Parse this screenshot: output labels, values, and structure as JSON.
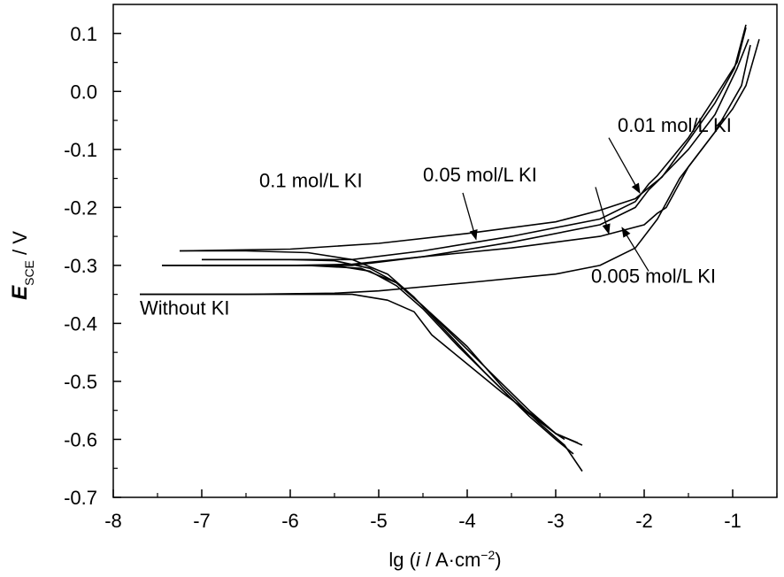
{
  "chart_data": {
    "type": "line",
    "xlabel_prefix": "lg (",
    "xlabel_i": "i",
    "xlabel_mid": " / A·cm",
    "xlabel_sup": "−2",
    "xlabel_suffix": ")",
    "ylabel_main": "E",
    "ylabel_sub": "SCE",
    "ylabel_unit": " / V",
    "xlim": [
      -8,
      -0.5
    ],
    "ylim": [
      -0.7,
      0.15
    ],
    "x_ticks": [
      "-8",
      "-7",
      "-6",
      "-5",
      "-4",
      "-3",
      "-2",
      "-1"
    ],
    "y_ticks": [
      "0.1",
      "0.0",
      "-0.1",
      "-0.2",
      "-0.3",
      "-0.4",
      "-0.5",
      "-0.6",
      "-0.7"
    ],
    "x_tick_values": [
      -8,
      -7,
      -6,
      -5,
      -4,
      -3,
      -2,
      -1
    ],
    "y_tick_values": [
      0.1,
      0.0,
      -0.1,
      -0.2,
      -0.3,
      -0.4,
      -0.5,
      -0.6,
      -0.7
    ],
    "series": [
      {
        "name": "Without KI",
        "cathodic": [
          [
            -7.7,
            -0.35
          ],
          [
            -7.0,
            -0.35
          ],
          [
            -6.0,
            -0.35
          ],
          [
            -5.3,
            -0.35
          ],
          [
            -4.9,
            -0.36
          ],
          [
            -4.6,
            -0.38
          ],
          [
            -4.4,
            -0.42
          ],
          [
            -4.0,
            -0.47
          ],
          [
            -3.6,
            -0.52
          ],
          [
            -3.2,
            -0.565
          ],
          [
            -3.0,
            -0.59
          ],
          [
            -2.75,
            -0.606
          ]
        ],
        "anodic": [
          [
            -7.7,
            -0.35
          ],
          [
            -6.5,
            -0.35
          ],
          [
            -5.5,
            -0.348
          ],
          [
            -5.0,
            -0.344
          ],
          [
            -4.0,
            -0.33
          ],
          [
            -3.0,
            -0.315
          ],
          [
            -2.5,
            -0.3
          ],
          [
            -2.1,
            -0.27
          ],
          [
            -1.85,
            -0.22
          ],
          [
            -1.6,
            -0.15
          ],
          [
            -1.3,
            -0.09
          ],
          [
            -1.0,
            -0.03
          ],
          [
            -0.85,
            0.01
          ],
          [
            -0.7,
            0.09
          ]
        ]
      },
      {
        "name": "0.005 mol/L KI",
        "cathodic": [
          [
            -7.45,
            -0.3
          ],
          [
            -6.5,
            -0.3
          ],
          [
            -5.8,
            -0.3
          ],
          [
            -5.2,
            -0.305
          ],
          [
            -4.8,
            -0.33
          ],
          [
            -4.5,
            -0.37
          ],
          [
            -4.1,
            -0.43
          ],
          [
            -3.7,
            -0.49
          ],
          [
            -3.3,
            -0.55
          ],
          [
            -3.0,
            -0.59
          ],
          [
            -2.7,
            -0.61
          ]
        ],
        "anodic": [
          [
            -7.45,
            -0.3
          ],
          [
            -6.0,
            -0.3
          ],
          [
            -5.3,
            -0.3
          ],
          [
            -4.5,
            -0.285
          ],
          [
            -3.5,
            -0.27
          ],
          [
            -2.5,
            -0.25
          ],
          [
            -2.0,
            -0.23
          ],
          [
            -1.85,
            -0.21
          ],
          [
            -1.75,
            -0.2
          ],
          [
            -1.5,
            -0.13
          ],
          [
            -1.2,
            -0.07
          ],
          [
            -0.9,
            0.01
          ],
          [
            -0.8,
            0.08
          ]
        ]
      },
      {
        "name": "0.01 mol/L KI",
        "cathodic": [
          [
            -7.0,
            -0.3
          ],
          [
            -6.2,
            -0.3
          ],
          [
            -5.5,
            -0.3
          ],
          [
            -5.1,
            -0.31
          ],
          [
            -4.8,
            -0.335
          ],
          [
            -4.5,
            -0.375
          ],
          [
            -4.1,
            -0.44
          ],
          [
            -3.7,
            -0.5
          ],
          [
            -3.3,
            -0.56
          ],
          [
            -3.0,
            -0.6
          ],
          [
            -2.8,
            -0.625
          ]
        ],
        "anodic": [
          [
            -7.0,
            -0.3
          ],
          [
            -6.0,
            -0.3
          ],
          [
            -5.3,
            -0.298
          ],
          [
            -4.5,
            -0.285
          ],
          [
            -3.5,
            -0.26
          ],
          [
            -2.5,
            -0.23
          ],
          [
            -2.1,
            -0.2
          ],
          [
            -1.95,
            -0.17
          ],
          [
            -1.85,
            -0.155
          ],
          [
            -1.5,
            -0.1
          ],
          [
            -1.2,
            -0.04
          ],
          [
            -0.95,
            0.04
          ],
          [
            -0.82,
            0.09
          ]
        ]
      },
      {
        "name": "0.05 mol/L KI",
        "cathodic": [
          [
            -7.0,
            -0.29
          ],
          [
            -6.0,
            -0.29
          ],
          [
            -5.5,
            -0.292
          ],
          [
            -5.1,
            -0.305
          ],
          [
            -4.8,
            -0.33
          ],
          [
            -4.5,
            -0.37
          ],
          [
            -4.0,
            -0.44
          ],
          [
            -3.6,
            -0.51
          ],
          [
            -3.2,
            -0.57
          ],
          [
            -2.9,
            -0.61
          ],
          [
            -2.7,
            -0.655
          ]
        ],
        "anodic": [
          [
            -7.0,
            -0.29
          ],
          [
            -6.0,
            -0.29
          ],
          [
            -5.3,
            -0.29
          ],
          [
            -4.5,
            -0.275
          ],
          [
            -3.5,
            -0.25
          ],
          [
            -2.5,
            -0.22
          ],
          [
            -2.1,
            -0.19
          ],
          [
            -1.95,
            -0.16
          ],
          [
            -1.85,
            -0.145
          ],
          [
            -1.5,
            -0.08
          ],
          [
            -1.2,
            -0.01
          ],
          [
            -0.95,
            0.05
          ],
          [
            -0.85,
            0.11
          ]
        ]
      },
      {
        "name": "0.1 mol/L KI",
        "cathodic": [
          [
            -7.25,
            -0.275
          ],
          [
            -6.5,
            -0.275
          ],
          [
            -5.8,
            -0.278
          ],
          [
            -5.3,
            -0.29
          ],
          [
            -4.9,
            -0.315
          ],
          [
            -4.6,
            -0.355
          ],
          [
            -4.2,
            -0.42
          ],
          [
            -3.8,
            -0.485
          ],
          [
            -3.4,
            -0.545
          ],
          [
            -3.0,
            -0.59
          ],
          [
            -2.9,
            -0.6
          ]
        ],
        "anodic": [
          [
            -7.25,
            -0.275
          ],
          [
            -6.0,
            -0.272
          ],
          [
            -5.0,
            -0.262
          ],
          [
            -4.0,
            -0.245
          ],
          [
            -3.0,
            -0.225
          ],
          [
            -2.5,
            -0.205
          ],
          [
            -2.1,
            -0.185
          ],
          [
            -1.9,
            -0.16
          ],
          [
            -1.8,
            -0.148
          ],
          [
            -1.5,
            -0.085
          ],
          [
            -1.2,
            -0.02
          ],
          [
            -0.98,
            0.04
          ],
          [
            -0.85,
            0.115
          ]
        ]
      }
    ],
    "annotations": [
      {
        "label": "0.1 mol/L KI",
        "text_at": [
          -6.35,
          -0.165
        ],
        "arrow_from": [
          -4.05,
          -0.175
        ],
        "arrow_to": [
          -3.9,
          -0.255
        ]
      },
      {
        "label": "0.05 mol/L KI",
        "text_at": [
          -4.5,
          -0.155
        ],
        "arrow_from": [
          -2.55,
          -0.165
        ],
        "arrow_to": [
          -2.4,
          -0.245
        ]
      },
      {
        "label": "0.01 mol/L KI",
        "text_at": [
          -2.3,
          -0.07
        ],
        "arrow_from": [
          -2.4,
          -0.08
        ],
        "arrow_to": [
          -2.05,
          -0.175
        ]
      },
      {
        "label": "0.005 mol/L KI",
        "text_at": [
          -2.6,
          -0.33
        ],
        "arrow_from": [
          -1.95,
          -0.31
        ],
        "arrow_to": [
          -2.25,
          -0.235
        ]
      },
      {
        "label": "Without KI",
        "text_at": [
          -7.7,
          -0.385
        ],
        "arrow_from": null,
        "arrow_to": null
      }
    ]
  }
}
